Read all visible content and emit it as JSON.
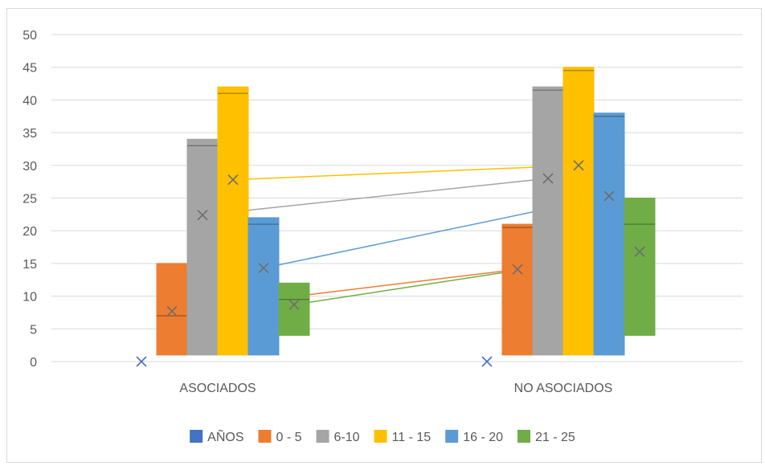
{
  "chart_data": {
    "type": "box",
    "title": "",
    "xlabel": "",
    "ylabel": "",
    "ylim": [
      0,
      50
    ],
    "yticks": [
      0,
      5,
      10,
      15,
      20,
      25,
      30,
      35,
      40,
      45,
      50
    ],
    "grid": true,
    "legend_position": "bottom",
    "categories": [
      "ASOCIADOS",
      "NO ASOCIADOS"
    ],
    "series": [
      {
        "name": "AÑOS",
        "color": "#4472c4",
        "boxes": [
          {
            "min": 0,
            "q1": 0,
            "median": 0,
            "q3": 0,
            "max": 0,
            "mean": 0
          },
          {
            "min": 0,
            "q1": 0,
            "median": 0,
            "q3": 0,
            "max": 0,
            "mean": 0
          }
        ]
      },
      {
        "name": "0 - 5",
        "color": "#ed7d31",
        "boxes": [
          {
            "min": 1,
            "q1": 1,
            "median": 7,
            "q3": 15,
            "max": 15,
            "mean": 7.7
          },
          {
            "min": 1,
            "q1": 1,
            "median": 20.5,
            "q3": 21,
            "max": 21,
            "mean": 14.1
          }
        ]
      },
      {
        "name": "6-10",
        "color": "#a5a5a5",
        "boxes": [
          {
            "min": 1,
            "q1": 1,
            "median": 33,
            "q3": 34,
            "max": 34,
            "mean": 22.4
          },
          {
            "min": 1,
            "q1": 1,
            "median": 41.5,
            "q3": 42,
            "max": 42,
            "mean": 28
          }
        ]
      },
      {
        "name": "11 - 15",
        "color": "#ffc000",
        "boxes": [
          {
            "min": 1,
            "q1": 1,
            "median": 41,
            "q3": 42,
            "max": 42,
            "mean": 27.8
          },
          {
            "min": 1,
            "q1": 1,
            "median": 44.5,
            "q3": 45,
            "max": 45,
            "mean": 30
          }
        ]
      },
      {
        "name": "16 - 20",
        "color": "#5b9bd5",
        "boxes": [
          {
            "min": 1,
            "q1": 1,
            "median": 21,
            "q3": 22,
            "max": 22,
            "mean": 14.3
          },
          {
            "min": 1,
            "q1": 1,
            "median": 37.5,
            "q3": 38,
            "max": 38,
            "mean": 25.3
          }
        ]
      },
      {
        "name": "21 - 25",
        "color": "#70ad47",
        "boxes": [
          {
            "min": 4,
            "q1": 4,
            "median": 9.5,
            "q3": 12,
            "max": 12,
            "mean": 8.7
          },
          {
            "min": 4,
            "q1": 4,
            "median": 21,
            "q3": 25,
            "max": 25,
            "mean": 16.8
          }
        ]
      }
    ]
  }
}
